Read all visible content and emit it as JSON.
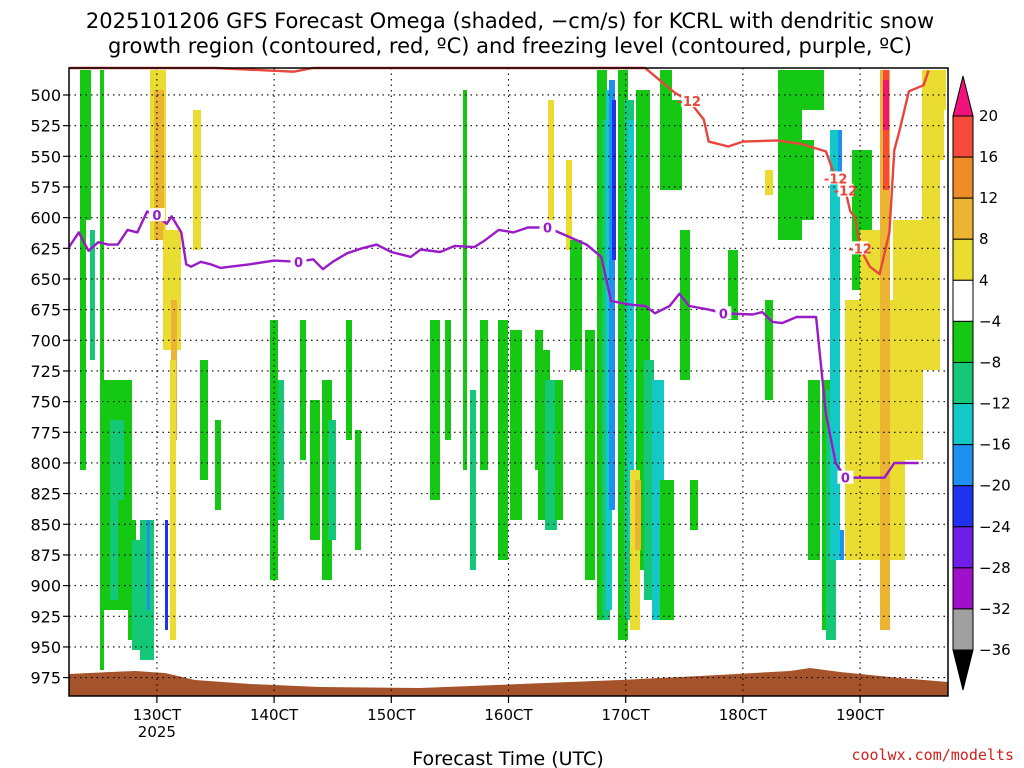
{
  "title_line1": "2025101206 GFS Forecast Omega (shaded, −cm/s) for KCRL with dendritic snow",
  "title_line2": "growth region (contoured, red, ºC) and freezing level (contoured, purple, ºC)",
  "credit": "coolwx.com/modelts",
  "chart_data": {
    "type": "heatmap",
    "title": "2025101206 GFS Forecast Omega (shaded, −cm/s) for KCRL with dendritic snow growth region (contoured, red, ºC) and freezing level (contoured, purple, ºC)",
    "xlabel": "Forecast Time (UTC)",
    "ylabel": "",
    "x_ticks": [
      {
        "label": "130CT",
        "sublabel": "2025",
        "hours": 18
      },
      {
        "label": "140CT",
        "sublabel": "",
        "hours": 42
      },
      {
        "label": "150CT",
        "sublabel": "",
        "hours": 66
      },
      {
        "label": "160CT",
        "sublabel": "",
        "hours": 90
      },
      {
        "label": "170CT",
        "sublabel": "",
        "hours": 114
      },
      {
        "label": "180CT",
        "sublabel": "",
        "hours": 138
      },
      {
        "label": "190CT",
        "sublabel": "",
        "hours": 162
      }
    ],
    "xlim_hours": [
      0,
      180
    ],
    "y_ticks": [
      500,
      525,
      550,
      575,
      600,
      625,
      650,
      675,
      700,
      725,
      750,
      775,
      800,
      825,
      850,
      875,
      900,
      925,
      950,
      975
    ],
    "ylim_hPa": [
      478,
      990
    ],
    "grid": true,
    "colorbar": {
      "labels": [
        20,
        16,
        12,
        8,
        4,
        -4,
        -8,
        -12,
        -16,
        -20,
        -24,
        -28,
        -32,
        -36
      ],
      "colors": [
        "#f0147a",
        "#f54a3c",
        "#f08c28",
        "#ebb432",
        "#ebdc32",
        "#ffffff",
        "#14c814",
        "#14c878",
        "#14c8c8",
        "#1e90f0",
        "#1e32f0",
        "#6e1ee6",
        "#a010c8",
        "#a0a0a0",
        "#000000"
      ],
      "ticks_below_cells": [
        20,
        16,
        12,
        8,
        4,
        -4,
        -8,
        -12,
        -16,
        -20,
        -24,
        -28,
        -32,
        -36
      ]
    },
    "contours": [
      {
        "name": "freezing level",
        "label": "0",
        "color": "#9b1ac8",
        "label_hours": [
          18,
          47,
          98,
          135,
          162
        ],
        "points_hours_hPa": [
          [
            0,
            624
          ],
          [
            2,
            612
          ],
          [
            4,
            627
          ],
          [
            6,
            620
          ],
          [
            8,
            622
          ],
          [
            10,
            622
          ],
          [
            12,
            610
          ],
          [
            14,
            612
          ],
          [
            16,
            595
          ],
          [
            18,
            598
          ],
          [
            20,
            605
          ],
          [
            21,
            599
          ],
          [
            23,
            612
          ],
          [
            24,
            638
          ],
          [
            25,
            640
          ],
          [
            27,
            636
          ],
          [
            29,
            638
          ],
          [
            31,
            641
          ],
          [
            33,
            640
          ],
          [
            37,
            638
          ],
          [
            42,
            635
          ],
          [
            47,
            636
          ],
          [
            50,
            634
          ],
          [
            52,
            642
          ],
          [
            54,
            636
          ],
          [
            57,
            629
          ],
          [
            60,
            625
          ],
          [
            63,
            622
          ],
          [
            66,
            628
          ],
          [
            70,
            632
          ],
          [
            72,
            626
          ],
          [
            76,
            628
          ],
          [
            79,
            623
          ],
          [
            83,
            624
          ],
          [
            85,
            619
          ],
          [
            88,
            610
          ],
          [
            91,
            612
          ],
          [
            94,
            608
          ],
          [
            98,
            608
          ],
          [
            102,
            615
          ],
          [
            106,
            622
          ],
          [
            109,
            632
          ],
          [
            111,
            668
          ],
          [
            115,
            671
          ],
          [
            118,
            672
          ],
          [
            120,
            678
          ],
          [
            123,
            672
          ],
          [
            125,
            662
          ],
          [
            127,
            672
          ],
          [
            131,
            675
          ],
          [
            134,
            678
          ],
          [
            140,
            679
          ],
          [
            142,
            677
          ],
          [
            144,
            685
          ],
          [
            146,
            686
          ],
          [
            149,
            681
          ],
          [
            153,
            681
          ],
          [
            155,
            760
          ],
          [
            157,
            800
          ],
          [
            159,
            812
          ],
          [
            165,
            812
          ],
          [
            167,
            812
          ],
          [
            169,
            800
          ],
          [
            174,
            800
          ]
        ]
      },
      {
        "name": "dendritic snow growth region",
        "label": "-12",
        "color": "#e8453c",
        "label_hours": [
          128,
          157,
          159,
          163
        ],
        "points_hours_hPa": [
          [
            0,
            478
          ],
          [
            30,
            478
          ],
          [
            46,
            481
          ],
          [
            50,
            478
          ],
          [
            100,
            478
          ],
          [
            118,
            478
          ],
          [
            121,
            488
          ],
          [
            124,
            498
          ],
          [
            127,
            505
          ],
          [
            130,
            520
          ],
          [
            131,
            538
          ],
          [
            135,
            542
          ],
          [
            138,
            538
          ],
          [
            145,
            537
          ],
          [
            150,
            540
          ],
          [
            155,
            546
          ],
          [
            157,
            568
          ],
          [
            159,
            578
          ],
          [
            160,
            595
          ],
          [
            161,
            600
          ],
          [
            162,
            625
          ],
          [
            164,
            640
          ],
          [
            166,
            646
          ],
          [
            168,
            612
          ],
          [
            169,
            545
          ],
          [
            170,
            530
          ],
          [
            172,
            497
          ],
          [
            175,
            492
          ],
          [
            176,
            480
          ]
        ]
      }
    ],
    "note_dates": "x axis ticks at 18Z each day, day labels printed as 130CT..190CT"
  }
}
